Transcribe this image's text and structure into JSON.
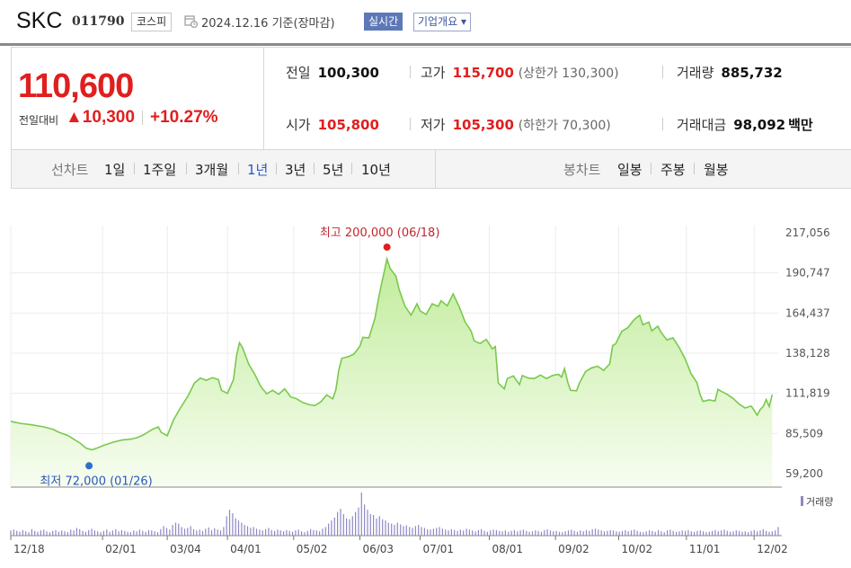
{
  "header": {
    "name": "SKC",
    "code": "011790",
    "market": "코스피",
    "date": "2024.12.16",
    "basis": "기준(장마감)",
    "live_label": "실시간",
    "company_label": "기업개요 ▾"
  },
  "quote": {
    "price": "110,600",
    "change_label": "전일대비",
    "change_value": "▲10,300",
    "change_pct": "+10.27%",
    "prev_label": "전일",
    "prev_value": "100,300",
    "high_label": "고가",
    "high_value": "115,700",
    "upper_limit": "(상한가 130,300)",
    "volume_label": "거래량",
    "volume_value": "885,732",
    "open_label": "시가",
    "open_value": "105,800",
    "low_label": "저가",
    "low_value": "105,300",
    "lower_limit": "(하한가 70,300)",
    "amount_label": "거래대금",
    "amount_value": "98,092",
    "amount_unit": "백만"
  },
  "periods": {
    "line_label": "선차트",
    "items": [
      "1일",
      "1주일",
      "3개월",
      "1년",
      "3년",
      "5년",
      "10년"
    ],
    "selected": "1년",
    "candle_label": "봉차트",
    "candle_items": [
      "일봉",
      "주봉",
      "월봉"
    ]
  },
  "colors": {
    "up": "#e01f1f",
    "down": "#2a58c8",
    "line": "#79c94d",
    "fill_top": "#c2ec9c",
    "fill_bottom": "#f7fdf1",
    "volume": "#8d88c5"
  },
  "chart_data": {
    "type": "area",
    "ylim": [
      59200,
      217056
    ],
    "y_ticks": [
      "217,056",
      "190,747",
      "164,437",
      "138,128",
      "111,819",
      "85,509",
      "59,200"
    ],
    "x_ticks": [
      "12/18",
      "02/01",
      "03/04",
      "04/01",
      "05/02",
      "06/03",
      "07/01",
      "08/01",
      "09/02",
      "10/02",
      "11/01",
      "12/02"
    ],
    "x_tick_pos": [
      0,
      30.5,
      52,
      72,
      94,
      116,
      136,
      159,
      181,
      202,
      224.5,
      247
    ],
    "x_range": [
      0,
      255
    ],
    "max_label": "최고 200,000 (06/18)",
    "max_point": {
      "x": 125,
      "y": 200000
    },
    "min_label": "최저 72,000 (01/26)",
    "min_point": {
      "x": 26,
      "y": 72000
    },
    "volume_legend": "거래량",
    "price": [
      [
        0,
        93500
      ],
      [
        3,
        92200
      ],
      [
        7,
        91200
      ],
      [
        11,
        89800
      ],
      [
        14,
        88300
      ],
      [
        16,
        86300
      ],
      [
        19,
        84200
      ],
      [
        21,
        81700
      ],
      [
        23,
        79200
      ],
      [
        25,
        76000
      ],
      [
        27,
        74800
      ],
      [
        29,
        76200
      ],
      [
        31,
        77800
      ],
      [
        34,
        79800
      ],
      [
        37,
        81200
      ],
      [
        40,
        81800
      ],
      [
        42,
        82800
      ],
      [
        44,
        84500
      ],
      [
        47,
        88200
      ],
      [
        49,
        89800
      ],
      [
        50,
        86200
      ],
      [
        52,
        84000
      ],
      [
        54,
        94000
      ],
      [
        56,
        101000
      ],
      [
        59,
        110500
      ],
      [
        61,
        118500
      ],
      [
        63,
        121800
      ],
      [
        65,
        120400
      ],
      [
        67,
        122100
      ],
      [
        69,
        120800
      ],
      [
        70,
        113800
      ],
      [
        72,
        111800
      ],
      [
        74,
        120800
      ],
      [
        75,
        136500
      ],
      [
        76,
        145000
      ],
      [
        77,
        141800
      ],
      [
        79,
        131200
      ],
      [
        81,
        124500
      ],
      [
        83,
        116500
      ],
      [
        85,
        111500
      ],
      [
        87,
        113800
      ],
      [
        89,
        111200
      ],
      [
        91,
        114800
      ],
      [
        93,
        109500
      ],
      [
        95,
        108200
      ],
      [
        97,
        105800
      ],
      [
        99,
        104500
      ],
      [
        101,
        103800
      ],
      [
        103,
        106200
      ],
      [
        105,
        110800
      ],
      [
        107,
        108200
      ],
      [
        108,
        114000
      ],
      [
        109,
        127000
      ],
      [
        110,
        134800
      ],
      [
        112,
        135800
      ],
      [
        114,
        137500
      ],
      [
        116,
        142800
      ],
      [
        117,
        148500
      ],
      [
        119,
        148200
      ],
      [
        121,
        160800
      ],
      [
        122,
        172000
      ],
      [
        123,
        181800
      ],
      [
        124,
        190800
      ],
      [
        125,
        200000
      ],
      [
        126,
        193800
      ],
      [
        128,
        188500
      ],
      [
        129,
        180200
      ],
      [
        131,
        168900
      ],
      [
        133,
        163100
      ],
      [
        135,
        170500
      ],
      [
        136,
        165800
      ],
      [
        138,
        163500
      ],
      [
        140,
        170500
      ],
      [
        142,
        168800
      ],
      [
        143,
        172500
      ],
      [
        145,
        169200
      ],
      [
        147,
        177000
      ],
      [
        149,
        168500
      ],
      [
        151,
        158500
      ],
      [
        153,
        152500
      ],
      [
        154,
        146200
      ],
      [
        156,
        144500
      ],
      [
        158,
        147200
      ],
      [
        160,
        141000
      ],
      [
        161,
        142500
      ],
      [
        162,
        118500
      ],
      [
        164,
        114800
      ],
      [
        165,
        121500
      ],
      [
        167,
        123200
      ],
      [
        169,
        117600
      ],
      [
        170,
        123500
      ],
      [
        172,
        121800
      ],
      [
        174,
        121500
      ],
      [
        176,
        123800
      ],
      [
        178,
        121500
      ],
      [
        180,
        123500
      ],
      [
        182,
        124300
      ],
      [
        183,
        122500
      ],
      [
        184,
        128000
      ],
      [
        185,
        119500
      ],
      [
        186,
        113800
      ],
      [
        188,
        113500
      ],
      [
        189,
        118800
      ],
      [
        191,
        126200
      ],
      [
        193,
        128500
      ],
      [
        195,
        129600
      ],
      [
        197,
        126800
      ],
      [
        199,
        131200
      ],
      [
        200,
        143200
      ],
      [
        201,
        144400
      ],
      [
        203,
        152500
      ],
      [
        205,
        154800
      ],
      [
        207,
        159800
      ],
      [
        208,
        161500
      ],
      [
        209,
        163000
      ],
      [
        210,
        156800
      ],
      [
        212,
        158500
      ],
      [
        213,
        152800
      ],
      [
        215,
        155800
      ],
      [
        216,
        152100
      ],
      [
        218,
        146800
      ],
      [
        220,
        148200
      ],
      [
        222,
        142200
      ],
      [
        224,
        134800
      ],
      [
        226,
        124800
      ],
      [
        228,
        118800
      ],
      [
        229,
        111200
      ],
      [
        230,
        106500
      ],
      [
        232,
        107500
      ],
      [
        234,
        106800
      ],
      [
        235,
        114500
      ],
      [
        236,
        113200
      ],
      [
        238,
        111200
      ],
      [
        240,
        108500
      ],
      [
        242,
        104800
      ],
      [
        244,
        102200
      ],
      [
        246,
        103500
      ],
      [
        247,
        100800
      ],
      [
        248,
        97500
      ],
      [
        249,
        101200
      ],
      [
        250,
        103200
      ],
      [
        251,
        107800
      ],
      [
        252,
        103200
      ],
      [
        253,
        111000
      ]
    ],
    "volume": [
      12,
      14,
      11,
      9,
      13,
      10,
      8,
      15,
      11,
      9,
      12,
      14,
      10,
      8,
      11,
      13,
      9,
      12,
      10,
      8,
      14,
      12,
      18,
      15,
      11,
      9,
      13,
      16,
      12,
      10,
      8,
      11,
      14,
      9,
      12,
      15,
      10,
      13,
      11,
      9,
      8,
      12,
      10,
      14,
      11,
      9,
      13,
      12,
      10,
      8,
      15,
      22,
      18,
      14,
      25,
      30,
      28,
      20,
      16,
      18,
      22,
      15,
      12,
      14,
      11,
      16,
      19,
      13,
      17,
      14,
      12,
      20,
      45,
      60,
      52,
      40,
      35,
      30,
      25,
      22,
      18,
      20,
      16,
      14,
      12,
      15,
      18,
      13,
      11,
      14,
      12,
      10,
      13,
      11,
      9,
      12,
      14,
      10,
      8,
      11,
      15,
      13,
      12,
      10,
      16,
      20,
      28,
      35,
      42,
      55,
      62,
      50,
      40,
      38,
      45,
      55,
      65,
      100,
      72,
      60,
      50,
      48,
      40,
      45,
      38,
      35,
      30,
      28,
      25,
      30,
      26,
      22,
      24,
      20,
      18,
      22,
      25,
      20,
      18,
      15,
      14,
      16,
      18,
      20,
      16,
      14,
      12,
      15,
      13,
      11,
      14,
      12,
      16,
      14,
      12,
      10,
      13,
      15,
      11,
      9,
      12,
      14,
      13,
      11,
      10,
      12,
      9,
      11,
      13,
      10,
      12,
      14,
      11,
      9,
      10,
      12,
      11,
      9,
      13,
      15,
      12,
      10,
      11,
      9,
      8,
      10,
      12,
      14,
      11,
      9,
      12,
      10,
      13,
      11,
      15,
      16,
      14,
      12,
      10,
      11,
      13,
      12,
      10,
      9,
      11,
      13,
      10,
      12,
      14,
      11,
      9,
      8,
      10,
      12,
      11,
      9,
      13,
      10,
      8,
      12,
      14,
      11,
      9,
      10,
      12,
      11,
      13,
      10,
      9,
      11,
      12,
      10,
      8,
      9,
      11,
      13,
      10,
      12,
      14,
      11,
      9,
      10,
      12,
      11,
      9,
      10,
      8,
      11,
      13,
      10,
      12,
      15,
      11,
      9,
      10,
      12,
      20
    ]
  }
}
